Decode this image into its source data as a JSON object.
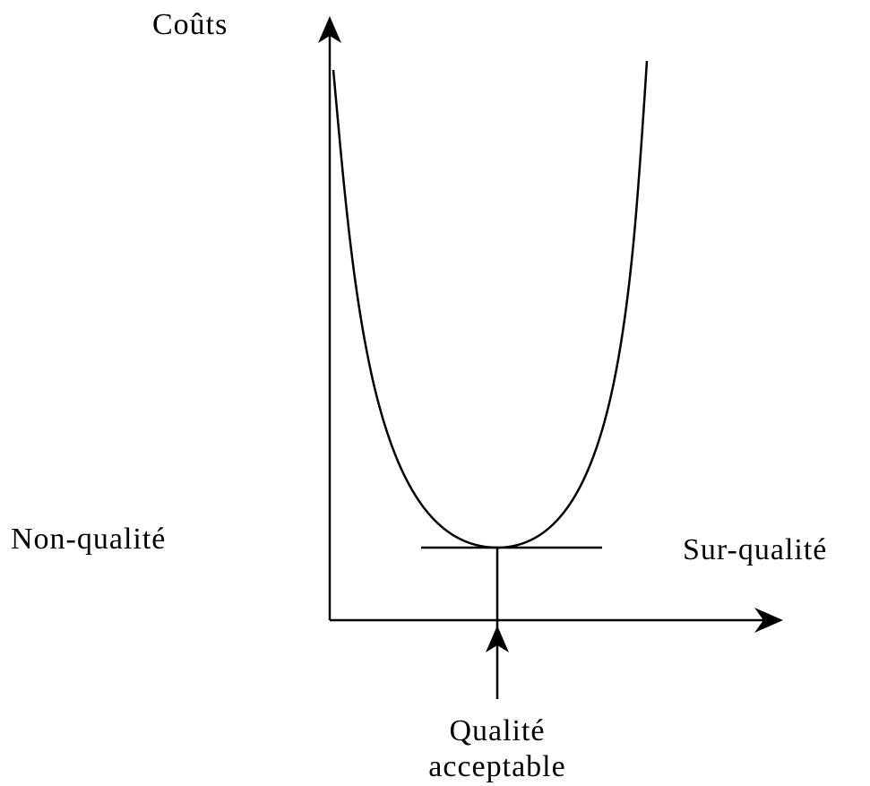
{
  "labels": {
    "y_axis": "Coûts",
    "left": "Non-qualité",
    "right": "Sur-qualité",
    "bottom": [
      "Qualité",
      "acceptable"
    ]
  }
}
